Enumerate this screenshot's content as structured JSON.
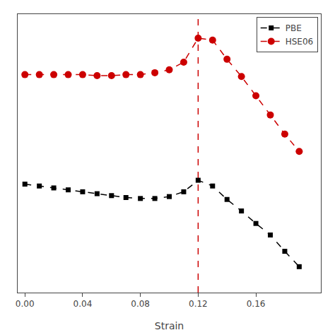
{
  "chart_data": {
    "type": "line",
    "x_label": "Strain",
    "x": [
      0.0,
      0.01,
      0.02,
      0.03,
      0.04,
      0.05,
      0.06,
      0.07,
      0.08,
      0.09,
      0.1,
      0.11,
      0.12,
      0.13,
      0.14,
      0.15,
      0.16,
      0.17,
      0.18,
      0.19
    ],
    "series": [
      {
        "name": "PBE",
        "color": "#000000",
        "marker": "square",
        "line_style": "dashed",
        "values": [
          1.58,
          1.56,
          1.54,
          1.52,
          1.5,
          1.48,
          1.46,
          1.44,
          1.43,
          1.43,
          1.45,
          1.5,
          1.62,
          1.56,
          1.42,
          1.3,
          1.17,
          1.05,
          0.88,
          0.72
        ]
      },
      {
        "name": "HSE06",
        "color": "#cc0000",
        "marker": "circle",
        "line_style": "dashed",
        "values": [
          2.72,
          2.72,
          2.72,
          2.72,
          2.72,
          2.71,
          2.71,
          2.72,
          2.72,
          2.74,
          2.77,
          2.85,
          3.1,
          3.08,
          2.88,
          2.7,
          2.5,
          2.3,
          2.1,
          1.92
        ]
      }
    ],
    "vlines": [
      {
        "x": 0.12,
        "color": "#cc0000",
        "line_style": "dashed"
      }
    ],
    "xlim": [
      -0.005,
      0.205
    ],
    "xticks": [
      {
        "value": 0,
        "label": "0.00"
      },
      0.04,
      0.08,
      0.12,
      0.16
    ],
    "ylim": [
      0.45,
      3.35
    ],
    "tick_labels": "x",
    "grid": false,
    "legend": "upper right"
  }
}
